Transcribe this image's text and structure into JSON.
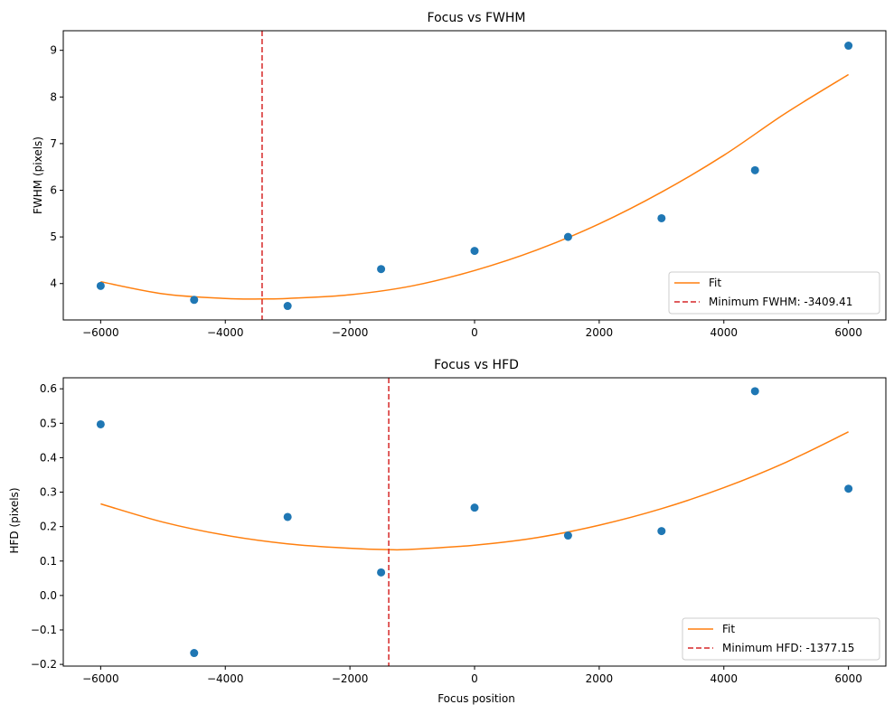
{
  "chart_data": [
    {
      "type": "scatter",
      "title": "Focus vs FWHM",
      "xlabel": "",
      "ylabel": "FWHM (pixels)",
      "xlim": [
        -6600,
        6600
      ],
      "ylim": [
        3.22,
        9.42
      ],
      "xticks": [
        -6000,
        -4000,
        -2000,
        0,
        2000,
        4000,
        6000
      ],
      "xtick_labels": [
        "−6000",
        "−4000",
        "−2000",
        "0",
        "2000",
        "4000",
        "6000"
      ],
      "yticks": [
        4,
        5,
        6,
        7,
        8,
        9
      ],
      "ytick_labels": [
        "4",
        "5",
        "6",
        "7",
        "8",
        "9"
      ],
      "points": {
        "x": [
          -6000,
          -4500,
          -3000,
          -1500,
          0,
          1500,
          3000,
          4500,
          6000
        ],
        "y": [
          3.95,
          3.65,
          3.52,
          4.31,
          4.7,
          5.0,
          5.4,
          6.43,
          9.1
        ]
      },
      "fit": {
        "name": "Fit",
        "x": [
          -6000,
          -5000,
          -4000,
          -3409.41,
          -3000,
          -2000,
          -1000,
          0,
          1000,
          2000,
          3000,
          4000,
          5000,
          6000
        ],
        "y": [
          4.04,
          3.78,
          3.68,
          3.67,
          3.68,
          3.76,
          3.95,
          4.28,
          4.72,
          5.28,
          5.96,
          6.75,
          7.66,
          8.48
        ]
      },
      "vline": {
        "x": -3409.41,
        "label": "Minimum FWHM: -3409.41"
      },
      "legend": {
        "placement": "lower-right",
        "entries": [
          "Fit",
          "Minimum FWHM: -3409.41"
        ]
      },
      "colors": {
        "points": "#1f77b4",
        "fit": "#ff7f0e",
        "vline": "#d62728"
      },
      "grid": false
    },
    {
      "type": "scatter",
      "title": "Focus vs HFD",
      "xlabel": "Focus position",
      "ylabel": "HFD (pixels)",
      "xlim": [
        -6600,
        6600
      ],
      "ylim": [
        -0.205,
        0.632
      ],
      "xticks": [
        -6000,
        -4000,
        -2000,
        0,
        2000,
        4000,
        6000
      ],
      "xtick_labels": [
        "−6000",
        "−4000",
        "−2000",
        "0",
        "2000",
        "4000",
        "6000"
      ],
      "yticks": [
        -0.2,
        -0.1,
        0.0,
        0.1,
        0.2,
        0.3,
        0.4,
        0.5,
        0.6
      ],
      "ytick_labels": [
        "−0.2",
        "−0.1",
        "0.0",
        "0.1",
        "0.2",
        "0.3",
        "0.4",
        "0.5",
        "0.6"
      ],
      "points": {
        "x": [
          -6000,
          -4500,
          -3000,
          -1500,
          0,
          1500,
          3000,
          4500,
          6000
        ],
        "y": [
          0.497,
          -0.167,
          0.228,
          0.067,
          0.255,
          0.174,
          0.187,
          0.593,
          0.31
        ]
      },
      "fit": {
        "name": "Fit",
        "x": [
          -6000,
          -5000,
          -4000,
          -3000,
          -2000,
          -1377.15,
          -1000,
          0,
          1000,
          2000,
          3000,
          4000,
          5000,
          6000
        ],
        "y": [
          0.266,
          0.213,
          0.175,
          0.15,
          0.137,
          0.133,
          0.134,
          0.146,
          0.168,
          0.204,
          0.252,
          0.313,
          0.387,
          0.475
        ]
      },
      "vline": {
        "x": -1377.15,
        "label": "Minimum HFD: -1377.15"
      },
      "legend": {
        "placement": "lower-right",
        "entries": [
          "Fit",
          "Minimum HFD: -1377.15"
        ]
      },
      "colors": {
        "points": "#1f77b4",
        "fit": "#ff7f0e",
        "vline": "#d62728"
      },
      "grid": false
    }
  ]
}
